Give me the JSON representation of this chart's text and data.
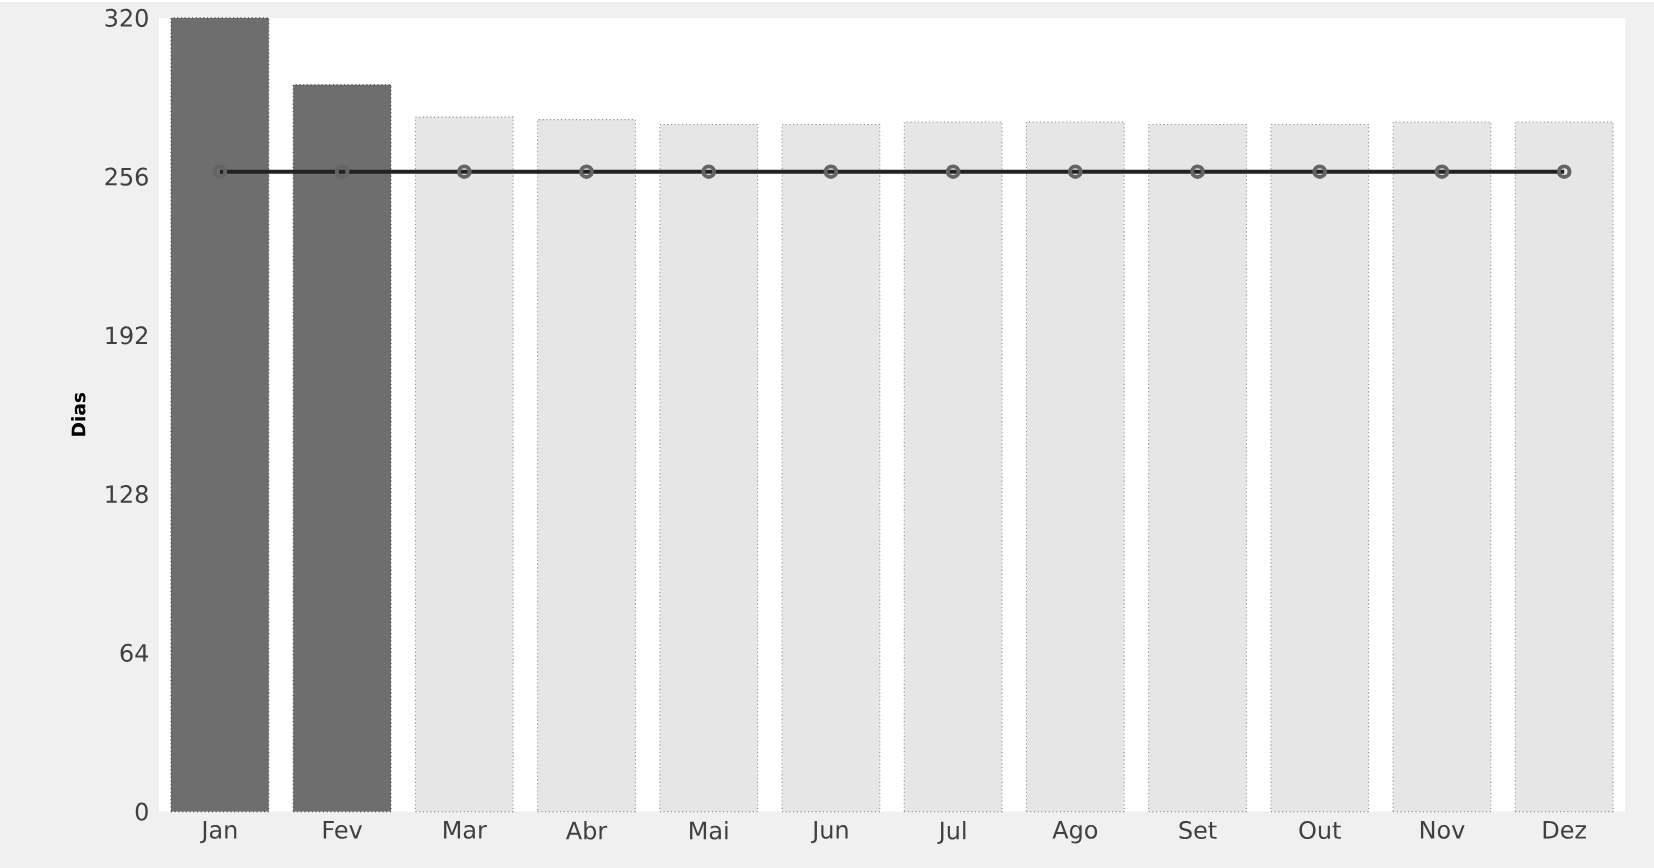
{
  "chart_data": {
    "type": "bar",
    "ylabel": "Dias",
    "categories": [
      "Jan",
      "Fev",
      "Mar",
      "Abr",
      "Mai",
      "Jun",
      "Jul",
      "Ago",
      "Set",
      "Out",
      "Nov",
      "Dez"
    ],
    "series": [
      {
        "colors": [
          "#6e6e6e",
          "#6e6e6e",
          "#e6e6e6",
          "#e6e6e6",
          "#e6e6e6",
          "#e6e6e6",
          "#e6e6e6",
          "#e6e6e6",
          "#e6e6e6",
          "#e6e6e6",
          "#e6e6e6",
          "#e6e6e6"
        ],
        "values": [
          320,
          293,
          280,
          279,
          277,
          277,
          278,
          278,
          277,
          277,
          278,
          278
        ]
      },
      {
        "type": "line",
        "color": "#222222",
        "marker": "circle",
        "values": [
          258,
          258,
          258,
          258,
          258,
          258,
          258,
          258,
          258,
          258,
          258,
          258
        ]
      }
    ],
    "ylim": [
      0,
      320
    ],
    "yticks": [
      0,
      64,
      128,
      192,
      256,
      320
    ]
  }
}
